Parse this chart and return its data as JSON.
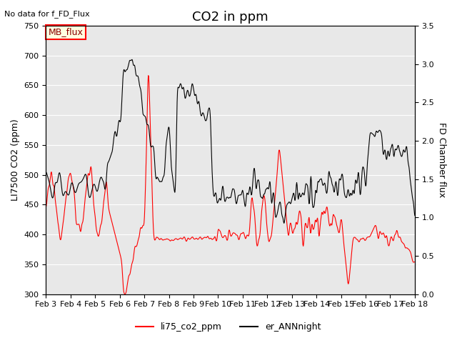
{
  "title": "CO2 in ppm",
  "ylabel_left": "LI7500 CO2 (ppm)",
  "ylabel_right": "FD Chamber flux",
  "ylim_left": [
    300,
    750
  ],
  "ylim_right": [
    0.0,
    3.5
  ],
  "yticks_left": [
    300,
    350,
    400,
    450,
    500,
    550,
    600,
    650,
    700,
    750
  ],
  "yticks_right": [
    0.0,
    0.5,
    1.0,
    1.5,
    2.0,
    2.5,
    3.0,
    3.5
  ],
  "xlabel": "",
  "no_data_text": "No data for f_FD_Flux",
  "mb_flux_label": "MB_flux",
  "legend_labels": [
    "li75_co2_ppm",
    "er_ANNnight"
  ],
  "legend_colors": [
    "red",
    "black"
  ],
  "background_color": "#e8e8e8",
  "plot_bg_color": "#e8e8e8",
  "title_fontsize": 13,
  "label_fontsize": 9,
  "tick_fontsize": 8,
  "n_points": 960,
  "x_start": 3.0,
  "x_end": 18.0,
  "xtick_positions": [
    3,
    4,
    5,
    6,
    7,
    8,
    9,
    10,
    11,
    12,
    13,
    14,
    15,
    16,
    17,
    18
  ],
  "xtick_labels": [
    "Feb 3",
    "Feb 4",
    "Feb 5",
    "Feb 6",
    "Feb 7",
    "Feb 8",
    "Feb 9",
    "Feb 10",
    "Feb 11",
    "Feb 12",
    "Feb 13",
    "Feb 14",
    "Feb 15",
    "Feb 16",
    "Feb 17",
    "Feb 18"
  ]
}
